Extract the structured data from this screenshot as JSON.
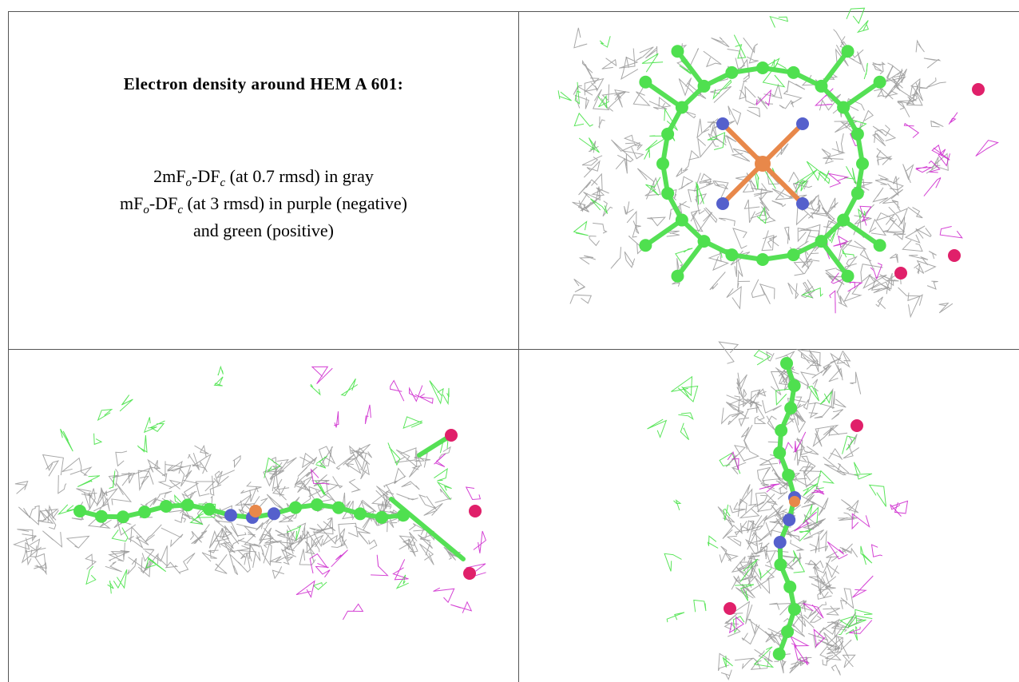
{
  "caption": {
    "title": "Electron density around HEM A 601:",
    "lines": [
      [
        "2mF",
        "o",
        "-DF",
        "c",
        " (at 0.7 rmsd) in gray"
      ],
      [
        "mF",
        "o",
        "-DF",
        "c",
        " (at 3 rmsd) in purple (negative)"
      ],
      [
        "and green (positive)"
      ]
    ]
  }
}
